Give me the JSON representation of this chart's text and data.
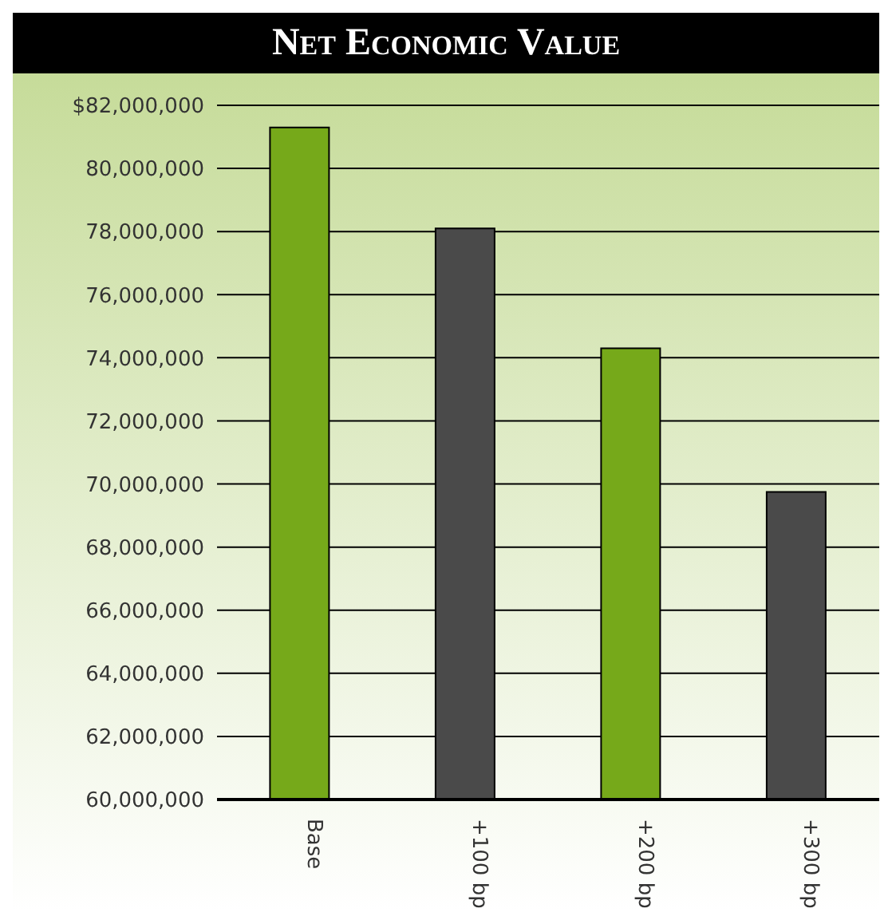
{
  "chart_data": {
    "type": "bar",
    "title": "Net Economic Value",
    "categories": [
      "Base",
      "+100 bp",
      "+200 bp",
      "+300 bp"
    ],
    "values": [
      81300000,
      78100000,
      74300000,
      69750000
    ],
    "colors": [
      "#76a91a",
      "#4a4a4a",
      "#76a91a",
      "#4a4a4a"
    ],
    "ylim": [
      60000000,
      82000000
    ],
    "yticks": [
      {
        "value": 60000000,
        "label": "60,000,000"
      },
      {
        "value": 62000000,
        "label": "62,000,000"
      },
      {
        "value": 64000000,
        "label": "64,000,000"
      },
      {
        "value": 66000000,
        "label": "66,000,000"
      },
      {
        "value": 68000000,
        "label": "68,000,000"
      },
      {
        "value": 70000000,
        "label": "70,000,000"
      },
      {
        "value": 72000000,
        "label": "72,000,000"
      },
      {
        "value": 74000000,
        "label": "74,000,000"
      },
      {
        "value": 76000000,
        "label": "76,000,000"
      },
      {
        "value": 78000000,
        "label": "78,000,000"
      },
      {
        "value": 80000000,
        "label": "80,000,000"
      },
      {
        "value": 82000000,
        "label": "$82,000,000"
      }
    ],
    "grid": "y"
  }
}
